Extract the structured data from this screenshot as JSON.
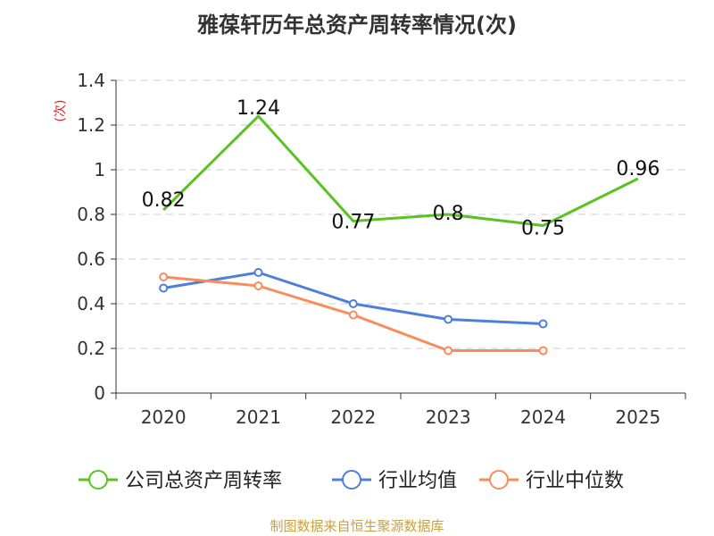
{
  "chart_data": {
    "type": "line",
    "title": "雅葆轩历年总资产周转率情况(次)",
    "ylabel": "(次)",
    "xlabel": "",
    "categories": [
      "2020",
      "2021",
      "2022",
      "2023",
      "2024",
      "2025"
    ],
    "yticks": [
      "0",
      "0.2",
      "0.4",
      "0.6",
      "0.8",
      "1",
      "1.2",
      "1.4"
    ],
    "ylim": [
      0,
      1.4
    ],
    "grid": true,
    "legend_position": "bottom",
    "series": [
      {
        "name": "公司总资产周转率",
        "color": "#5bc221",
        "values": [
          0.82,
          1.24,
          0.77,
          0.8,
          0.75,
          0.96
        ],
        "labels": [
          "0.82",
          "1.24",
          "0.77",
          "0.8",
          "0.75",
          "0.96"
        ],
        "markers": false
      },
      {
        "name": "行业均值",
        "color": "#4d7fdb",
        "values": [
          0.47,
          0.54,
          0.4,
          0.33,
          0.31,
          null
        ],
        "markers": true
      },
      {
        "name": "行业中位数",
        "color": "#f98c5a",
        "values": [
          0.52,
          0.48,
          0.35,
          0.19,
          0.19,
          null
        ],
        "markers": true
      }
    ]
  },
  "source": "制图数据来自恒生聚源数据库"
}
